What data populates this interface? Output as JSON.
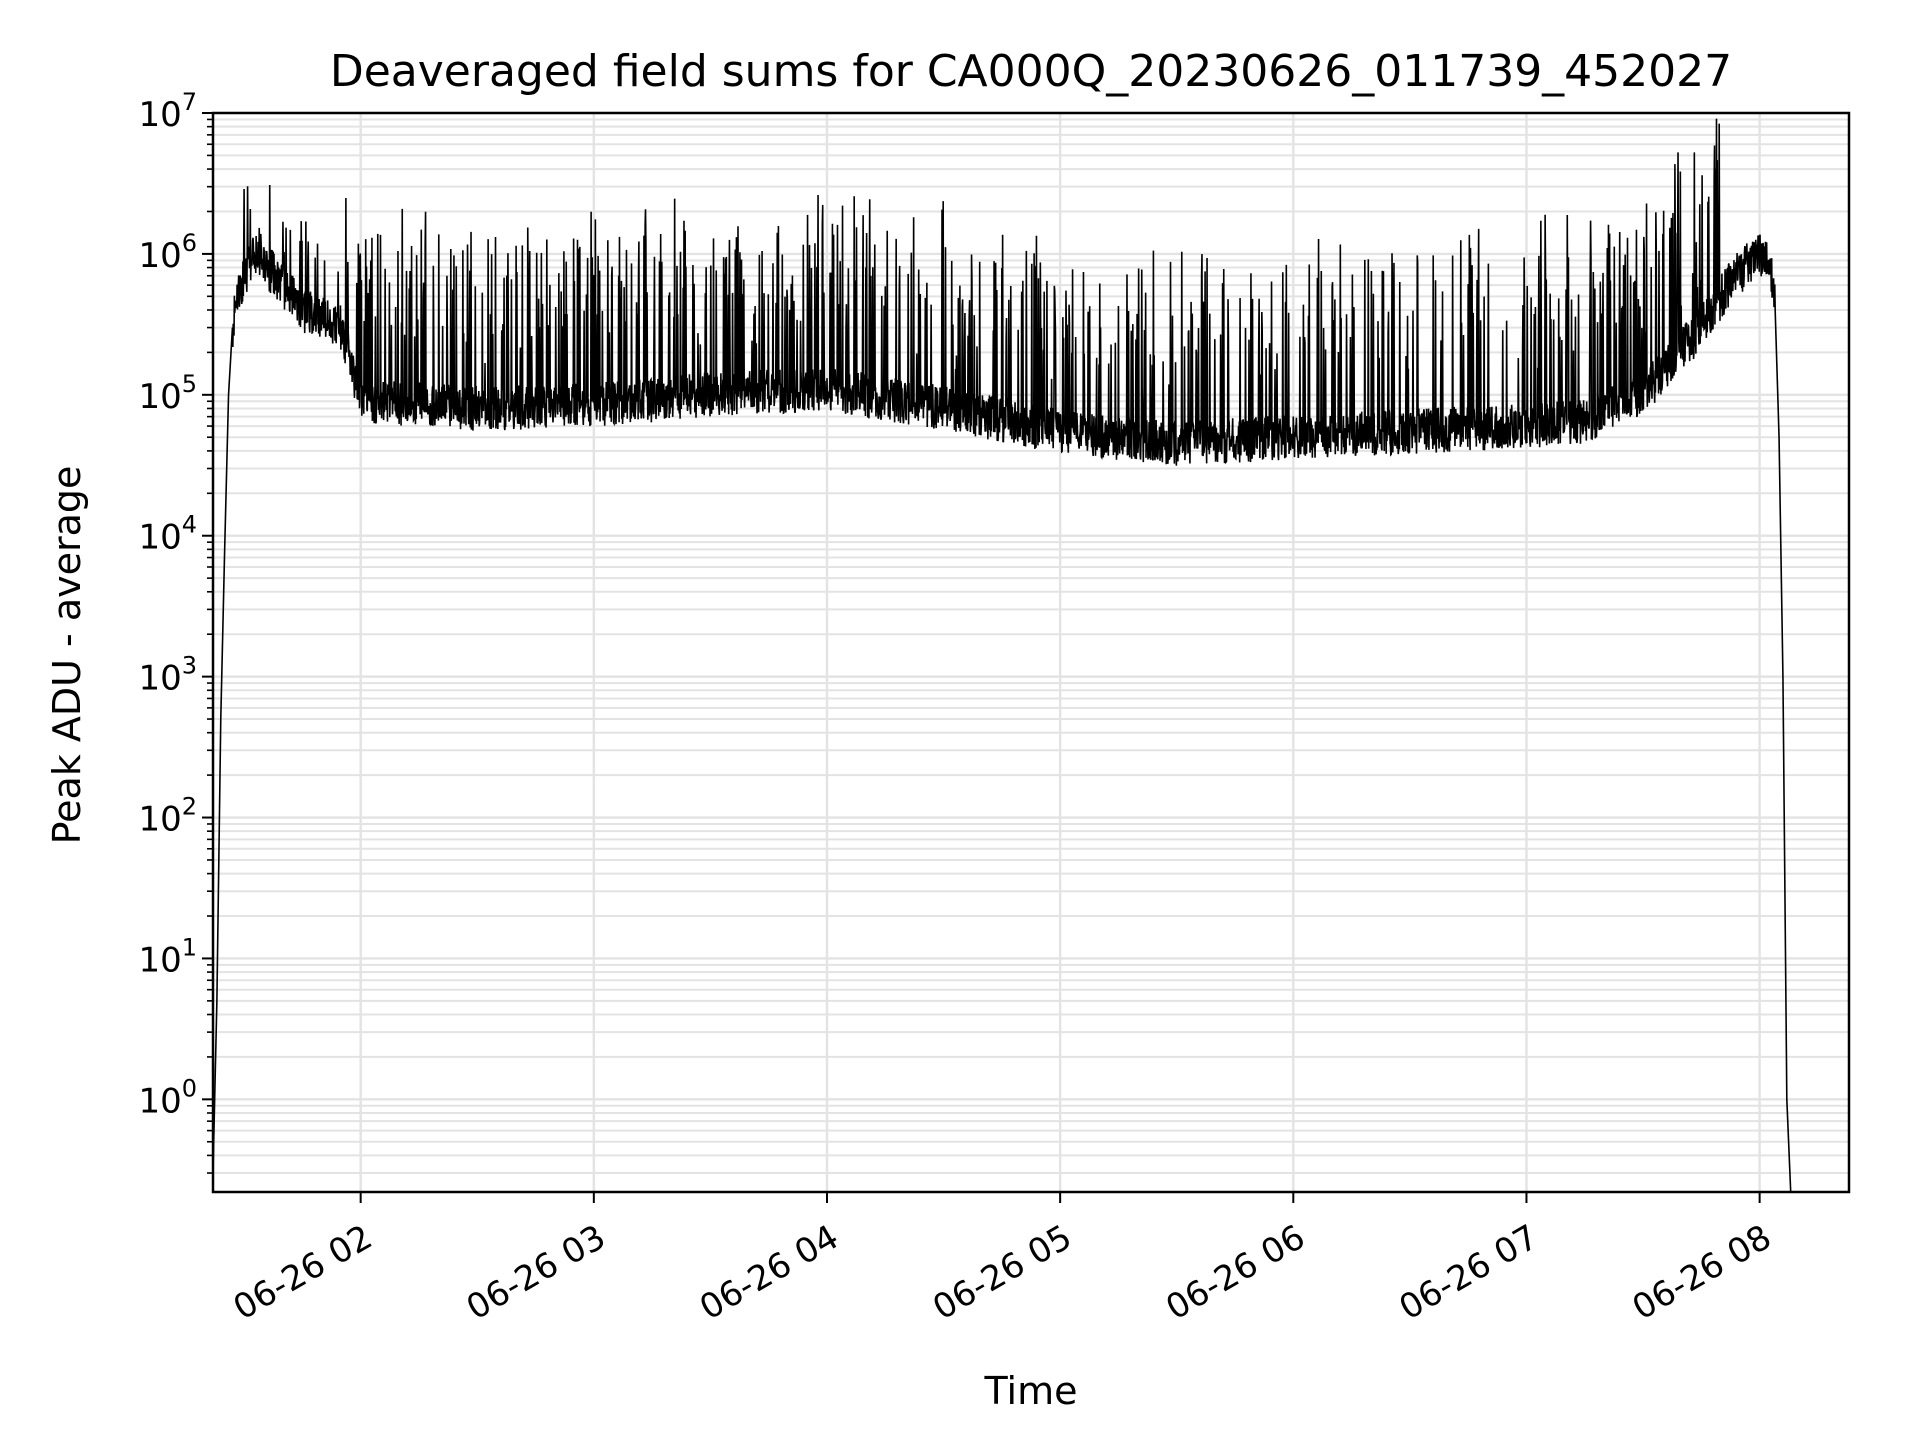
{
  "chart_data": {
    "type": "line",
    "title": "Deaveraged field sums for CA000Q_20230626_011739_452027",
    "xlabel": "Time",
    "ylabel": "Peak ADU - average",
    "yscale": "log",
    "ylim": [
      0.22,
      10000000
    ],
    "xlim": [
      "2023-06-26 01:22",
      "2023-06-26 08:23"
    ],
    "grid": true,
    "x_ticks": [
      "06-26 02",
      "06-26 03",
      "06-26 04",
      "06-26 05",
      "06-26 06",
      "06-26 07",
      "06-26 08"
    ],
    "y_ticks": [
      "10^0",
      "10^1",
      "10^2",
      "10^3",
      "10^4",
      "10^5",
      "10^6",
      "10^7"
    ],
    "line_color": "#000000",
    "series": [
      {
        "x": [
          "2023-06-26 01:22",
          "2023-06-26 01:23",
          "2023-06-26 01:24",
          "2023-06-26 01:25",
          "2023-06-26 01:26",
          "2023-06-26 01:27",
          "2023-06-26 01:28",
          "2023-06-26 01:30",
          "2023-06-26 01:32",
          "2023-06-26 01:34",
          "2023-06-26 01:36",
          "2023-06-26 01:38",
          "2023-06-26 01:40",
          "2023-06-26 01:45",
          "2023-06-26 01:50",
          "2023-06-26 01:55",
          "2023-06-26 02:00",
          "2023-06-26 02:30",
          "2023-06-26 03:00",
          "2023-06-26 03:30",
          "2023-06-26 04:00",
          "2023-06-26 04:30",
          "2023-06-26 05:00",
          "2023-06-26 05:30",
          "2023-06-26 06:00",
          "2023-06-26 06:30",
          "2023-06-26 07:00",
          "2023-06-26 07:15",
          "2023-06-26 07:30",
          "2023-06-26 07:45",
          "2023-06-26 07:52",
          "2023-06-26 07:56",
          "2023-06-26 08:00",
          "2023-06-26 08:02",
          "2023-06-26 08:03",
          "2023-06-26 08:04",
          "2023-06-26 08:05",
          "2023-06-26 08:06",
          "2023-06-26 08:07",
          "2023-06-26 08:08"
        ],
        "y": [
          0.3,
          5,
          500,
          8000,
          100000,
          300000,
          500000,
          700000,
          900000,
          1000000,
          800000,
          700000,
          600000,
          400000,
          350000,
          300000,
          90000,
          80000,
          85000,
          100000,
          110000,
          80000,
          55000,
          45000,
          50000,
          55000,
          60000,
          65000,
          100000,
          300000,
          600000,
          800000,
          1000000,
          900000,
          700000,
          400000,
          50000,
          1000,
          1,
          0.22
        ]
      }
    ]
  }
}
